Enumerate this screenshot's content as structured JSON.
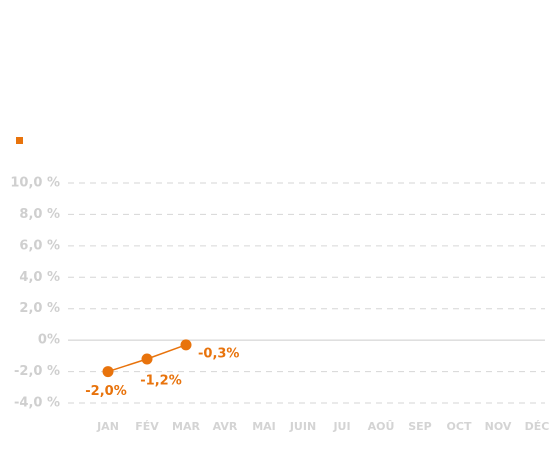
{
  "chart_data": {
    "type": "line",
    "categories": [
      "JAN",
      "FÉV",
      "MAR",
      "AVR",
      "MAI",
      "JUIN",
      "JUI",
      "AOÛ",
      "SEP",
      "OCT",
      "NOV",
      "DÉC"
    ],
    "series": [
      {
        "color": "#e8730c",
        "values": [
          -2.0,
          -1.2,
          -0.3,
          null,
          null,
          null,
          null,
          null,
          null,
          null,
          null,
          null
        ],
        "value_labels": [
          "-2,0%",
          "-1,2%",
          "-0,3%",
          null,
          null,
          null,
          null,
          null,
          null,
          null,
          null,
          null
        ]
      }
    ],
    "ylim": [
      -4,
      10
    ],
    "yticks": [
      {
        "value": -4,
        "label": "-4,0 %"
      },
      {
        "value": -2,
        "label": "-2,0 %"
      },
      {
        "value": 0,
        "label": "0%"
      },
      {
        "value": 2,
        "label": "2,0 %"
      },
      {
        "value": 4,
        "label": "4,0 %"
      },
      {
        "value": 6,
        "label": "6,0 %"
      },
      {
        "value": 8,
        "label": "8,0 %"
      },
      {
        "value": 10,
        "label": "10,0 %"
      }
    ],
    "grid": true
  }
}
